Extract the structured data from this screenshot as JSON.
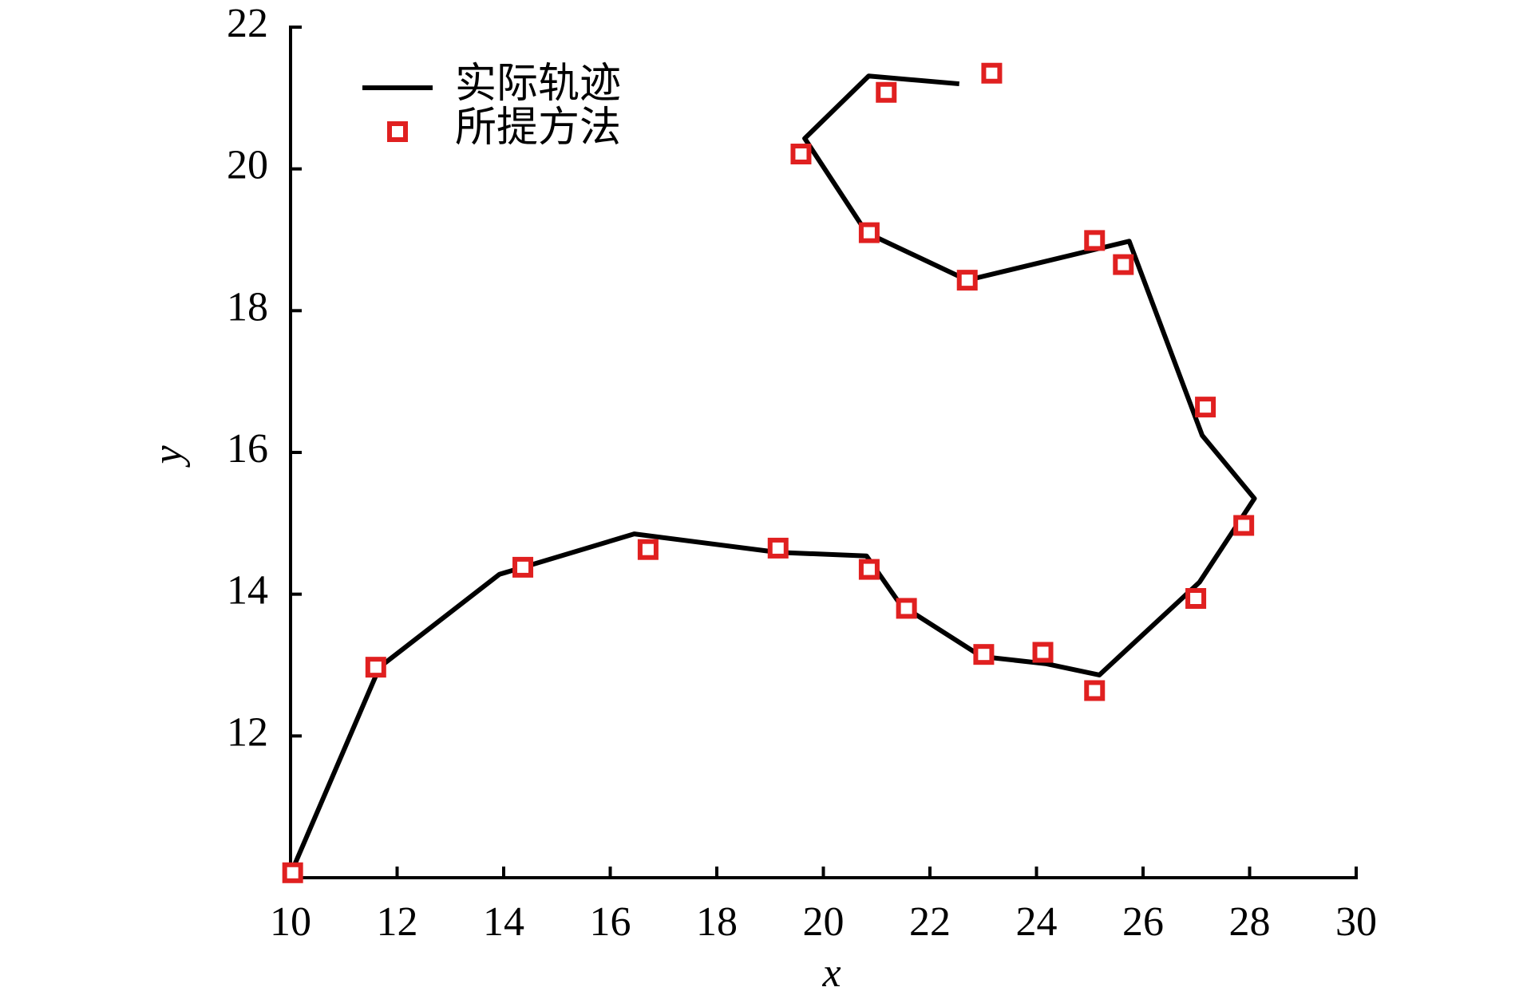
{
  "chart_data": {
    "type": "line",
    "xlabel": "x",
    "ylabel": "y",
    "xlim": [
      10,
      30
    ],
    "ylim": [
      10,
      22
    ],
    "xticks": [
      10,
      12,
      14,
      16,
      18,
      20,
      22,
      24,
      26,
      28,
      30
    ],
    "yticks": [
      12,
      14,
      16,
      18,
      20,
      22
    ],
    "legend": "upper left",
    "series": [
      {
        "name": "实际轨迹",
        "mode": "line",
        "color": "#000000",
        "x": [
          10.0,
          11.67,
          13.92,
          16.45,
          19.15,
          20.81,
          21.45,
          22.97,
          24.17,
          25.18,
          27.06,
          28.09,
          27.11,
          25.74,
          22.7,
          20.81,
          19.65,
          20.85,
          22.55
        ],
        "values": [
          10.05,
          12.97,
          14.28,
          14.85,
          14.59,
          14.54,
          13.85,
          13.12,
          13.02,
          12.86,
          14.17,
          15.35,
          16.24,
          18.98,
          18.43,
          19.1,
          20.43,
          21.31,
          21.2
        ]
      },
      {
        "name": "所提方法",
        "mode": "markers",
        "color": "#e02020",
        "x": [
          10.04,
          11.6,
          14.36,
          16.71,
          19.15,
          20.86,
          21.56,
          23.01,
          24.12,
          25.09,
          26.99,
          27.89,
          27.17,
          25.63,
          25.09,
          22.7,
          20.86,
          19.58,
          21.18,
          23.16
        ],
        "values": [
          10.07,
          12.97,
          14.38,
          14.63,
          14.65,
          14.35,
          13.8,
          13.15,
          13.18,
          12.64,
          13.94,
          14.97,
          16.64,
          18.65,
          18.99,
          18.43,
          19.1,
          20.21,
          21.08,
          21.35
        ]
      }
    ]
  }
}
